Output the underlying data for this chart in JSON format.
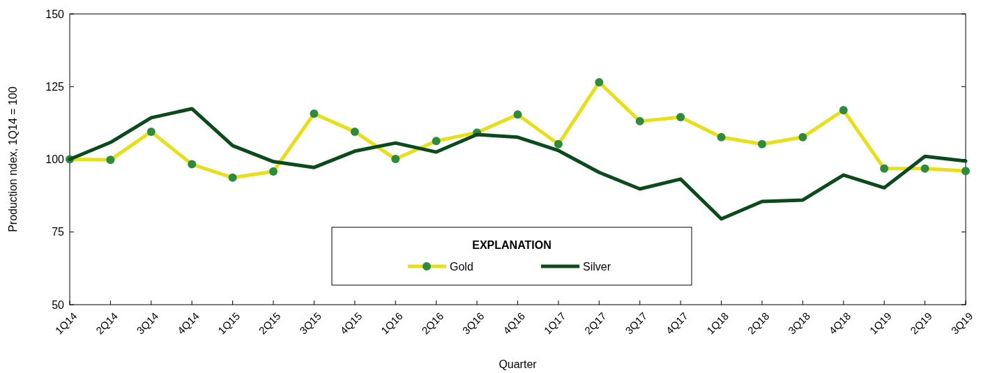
{
  "chart_data": {
    "type": "line",
    "xlabel": "Quarter",
    "ylabel": "Production ndex, 1Q14 = 100",
    "legend_title": "EXPLANATION",
    "legend": "bottom",
    "grid": false,
    "categories": [
      "1Q14",
      "2Q14",
      "3Q14",
      "4Q14",
      "1Q15",
      "2Q15",
      "3Q15",
      "4Q15",
      "1Q16",
      "2Q16",
      "3Q16",
      "4Q16",
      "1Q17",
      "2Q17",
      "3Q17",
      "4Q17",
      "1Q18",
      "2Q18",
      "3Q18",
      "4Q18",
      "1Q19",
      "2Q19",
      "3Q19"
    ],
    "ylim": [
      50,
      150
    ],
    "yticks": [
      50,
      75,
      100,
      125,
      150
    ],
    "series": [
      {
        "name": "Gold",
        "color": "#e6df1a",
        "marker": "circle",
        "colors": [
          "#2e8b3e",
          "#2e8b3e",
          "#2e8b3e",
          "#2e8b3e",
          "#2e8b3e",
          "#2e8b3e",
          "#2e8b3e",
          "#2e8b3e",
          "#2e8b3e",
          "#2e8b3e",
          "#2e8b3e",
          "#2e8b3e",
          "#2e8b3e",
          "#2e8b3e",
          "#2e8b3e",
          "#2e8b3e",
          "#2e8b3e",
          "#2e8b3e",
          "#2e8b3e",
          "#2e8b3e",
          "#2e8b3e",
          "#2e8b3e",
          "#2e8b3e"
        ],
        "values": [
          100,
          99.8,
          109.5,
          98.3,
          93.7,
          95.8,
          115.7,
          109.5,
          100.1,
          106.3,
          109.2,
          115.4,
          105.2,
          126.5,
          113.1,
          114.5,
          107.6,
          105.2,
          107.6,
          116.9,
          96.8,
          96.8,
          96.0
        ]
      },
      {
        "name": "Silver",
        "color": "#0b4a1c",
        "marker": "none",
        "values": [
          100,
          105.8,
          114.3,
          117.4,
          104.7,
          99.2,
          97.2,
          102.8,
          105.6,
          102.5,
          108.5,
          107.6,
          103,
          95.5,
          89.8,
          93.2,
          79.5,
          85.5,
          86,
          94.6,
          90.2,
          101,
          99.4
        ]
      }
    ]
  }
}
